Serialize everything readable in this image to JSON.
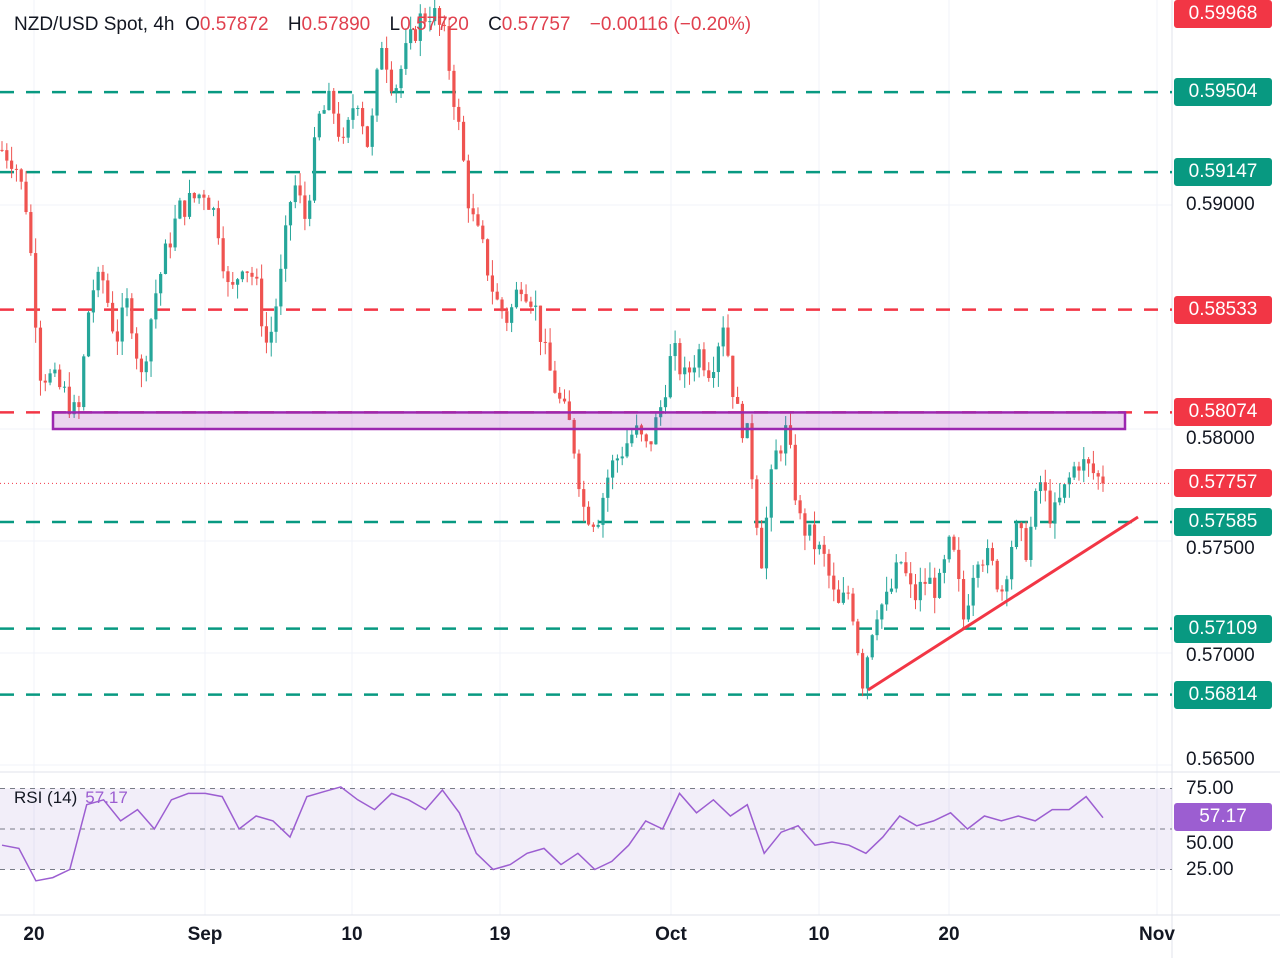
{
  "header": {
    "symbol": "NZD/USD Spot, 4h",
    "open_label": "O",
    "open": "0.57872",
    "high_label": "H",
    "high": "0.57890",
    "low_label": "L",
    "low": "0.57720",
    "close_label": "C",
    "close": "0.57757",
    "change": "−0.00116 (−0.20%)"
  },
  "rsi": {
    "label": "RSI (14)",
    "value": "57.17",
    "axis": [
      "75.00",
      "50.00",
      "25.00"
    ],
    "upper": 75,
    "middle": 50,
    "lower": 25
  },
  "colors": {
    "up": "#26a69a",
    "down": "#ef5350",
    "green_level": "#089981",
    "red_level": "#f23645",
    "zone": "#9c27b0",
    "rsi": "#9c5ed1"
  },
  "chart_data": {
    "type": "candlestick",
    "price_axis_ticks": [
      "0.59000",
      "0.58000",
      "0.57500",
      "0.57000",
      "0.56500"
    ],
    "price_axis_values": [
      0.59,
      0.58,
      0.575,
      0.57,
      0.565
    ],
    "x_ticks": [
      "20",
      "Sep",
      "10",
      "19",
      "Oct",
      "10",
      "20",
      "Nov"
    ],
    "ylim": [
      0.565,
      0.6
    ],
    "price_labels": [
      {
        "text": "0.59968",
        "value": 0.59968,
        "color": "#f23645"
      },
      {
        "text": "0.59504",
        "value": 0.59504,
        "color": "#089981"
      },
      {
        "text": "0.59147",
        "value": 0.59147,
        "color": "#089981"
      },
      {
        "text": "0.58533",
        "value": 0.58533,
        "color": "#f23645"
      },
      {
        "text": "0.58074",
        "value": 0.58074,
        "color": "#f23645"
      },
      {
        "text": "0.57757",
        "value": 0.57757,
        "color": "#f23645"
      },
      {
        "text": "0.57585",
        "value": 0.57585,
        "color": "#089981"
      },
      {
        "text": "0.57109",
        "value": 0.57109,
        "color": "#089981"
      },
      {
        "text": "0.56814",
        "value": 0.56814,
        "color": "#089981"
      }
    ],
    "horizontal_levels": [
      {
        "value": 0.59504,
        "color": "#089981"
      },
      {
        "value": 0.59147,
        "color": "#089981"
      },
      {
        "value": 0.58533,
        "color": "#f23645"
      },
      {
        "value": 0.58074,
        "color": "#f23645"
      },
      {
        "value": 0.57585,
        "color": "#089981"
      },
      {
        "value": 0.57109,
        "color": "#089981"
      },
      {
        "value": 0.56814,
        "color": "#089981"
      }
    ],
    "zone": {
      "from": 0.58,
      "to": 0.58074
    },
    "trendline": {
      "from": 0.56835,
      "to": 0.57607
    },
    "current_price": 0.57757,
    "closes": [
      0.59246,
      0.59201,
      0.58978,
      0.58263,
      0.58219,
      0.58152,
      0.5804,
      0.5862,
      0.58665,
      0.58397,
      0.58576,
      0.58219,
      0.58576,
      0.58799,
      0.58978,
      0.59022,
      0.59067,
      0.58933,
      0.58576,
      0.58754,
      0.58665,
      0.58353,
      0.58665,
      0.59112,
      0.58933,
      0.5938,
      0.59469,
      0.59246,
      0.59513,
      0.59246,
      0.59737,
      0.59513,
      0.59692,
      0.59826,
      0.5987,
      0.59737,
      0.5938,
      0.58967,
      0.58799,
      0.58576,
      0.58487,
      0.58665,
      0.58576,
      0.58308,
      0.58129,
      0.57996,
      0.57638,
      0.57594,
      0.57817,
      0.57906,
      0.57996,
      0.57906,
      0.58085,
      0.58353,
      0.58219,
      0.58353,
      0.58263,
      0.58487,
      0.58085,
      0.57951,
      0.57415,
      0.57862,
      0.57996,
      0.57594,
      0.57504,
      0.57415,
      0.57192,
      0.57281,
      0.5688,
      0.57192,
      0.57237,
      0.57415,
      0.57237,
      0.57326,
      0.57281,
      0.57504,
      0.57147,
      0.5746,
      0.57415,
      0.57281,
      0.57549,
      0.5746,
      0.57772,
      0.57594,
      0.57728,
      0.57862,
      0.57817,
      0.57757
    ],
    "rsi_values": [
      40,
      38,
      18,
      20,
      25,
      65,
      68,
      55,
      62,
      50,
      68,
      72,
      72,
      70,
      50,
      58,
      55,
      45,
      70,
      73,
      76,
      68,
      62,
      72,
      68,
      62,
      74,
      60,
      35,
      25,
      28,
      35,
      38,
      28,
      35,
      25,
      30,
      40,
      55,
      50,
      72,
      60,
      68,
      58,
      65,
      35,
      48,
      52,
      40,
      42,
      40,
      35,
      45,
      58,
      52,
      55,
      60,
      50,
      58,
      55,
      58,
      55,
      62,
      62,
      70,
      57
    ]
  }
}
